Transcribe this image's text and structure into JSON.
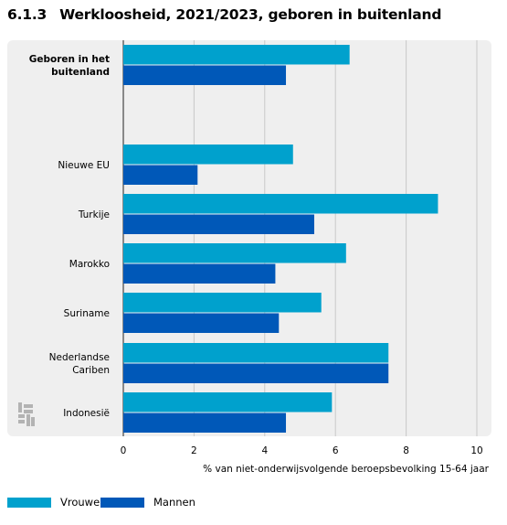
{
  "header": {
    "number": "6.1.3",
    "title": "Werkloosheid, 2021/2023, geboren in buitenland"
  },
  "legend": {
    "items": [
      {
        "label": "Vrouwen",
        "color": "#00a1cd"
      },
      {
        "label": "Mannen",
        "color": "#0058b8"
      }
    ]
  },
  "chart_data": {
    "type": "bar",
    "orientation": "horizontal",
    "title": "Werkloosheid, 2021/2023, geboren in buitenland",
    "xlabel": "% van niet-onderwijsvolgende beroepsbevolking 15-64 jaar",
    "ylabel": "",
    "xlim": [
      0,
      10
    ],
    "xticks": [
      0,
      2,
      4,
      6,
      8,
      10
    ],
    "grid": true,
    "legend_position": "bottom-left",
    "categories": [
      {
        "label": [
          "Geboren in het",
          "buitenland"
        ],
        "bold": true
      },
      {
        "label": [
          "Nieuwe EU"
        ],
        "bold": false
      },
      {
        "label": [
          "Turkije"
        ],
        "bold": false
      },
      {
        "label": [
          "Marokko"
        ],
        "bold": false
      },
      {
        "label": [
          "Suriname"
        ],
        "bold": false
      },
      {
        "label": [
          "Nederlandse",
          "Cariben"
        ],
        "bold": false
      },
      {
        "label": [
          "Indonesië"
        ],
        "bold": false
      }
    ],
    "series": [
      {
        "name": "Vrouwen",
        "color": "#00a1cd",
        "values": [
          6.4,
          4.8,
          8.9,
          6.3,
          5.6,
          7.5,
          5.9
        ]
      },
      {
        "name": "Mannen",
        "color": "#0058b8",
        "values": [
          4.6,
          2.1,
          5.4,
          4.3,
          4.4,
          7.5,
          4.6
        ]
      }
    ]
  }
}
